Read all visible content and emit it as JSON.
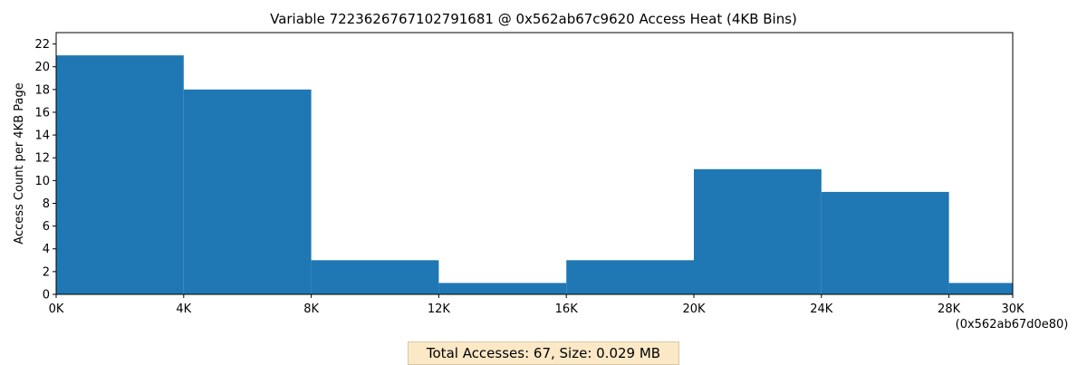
{
  "chart_data": {
    "type": "bar",
    "title": "Variable 7223626767102791681 @ 0x562ab67c9620 Access Heat (4KB Bins)",
    "xlabel": "",
    "ylabel": "Access Count per 4KB Page",
    "x_ticks": [
      "0K",
      "4K",
      "8K",
      "12K",
      "16K",
      "20K",
      "24K",
      "28K",
      "30K"
    ],
    "x_tick_values": [
      0,
      4,
      8,
      12,
      16,
      20,
      24,
      28,
      30
    ],
    "x_end_address": "(0x562ab67d0e80)",
    "bins": [
      {
        "start": 0,
        "end": 4,
        "value": 21
      },
      {
        "start": 4,
        "end": 8,
        "value": 18
      },
      {
        "start": 8,
        "end": 12,
        "value": 3
      },
      {
        "start": 12,
        "end": 16,
        "value": 1
      },
      {
        "start": 16,
        "end": 20,
        "value": 3
      },
      {
        "start": 20,
        "end": 24,
        "value": 11
      },
      {
        "start": 24,
        "end": 28,
        "value": 9
      },
      {
        "start": 28,
        "end": 30,
        "value": 1
      }
    ],
    "xlim": [
      0,
      30
    ],
    "ylim": [
      0,
      23
    ],
    "y_ticks": [
      0,
      2,
      4,
      6,
      8,
      10,
      12,
      14,
      16,
      18,
      20,
      22
    ],
    "bar_color": "#1f77b4",
    "grid": false,
    "legend": "none"
  },
  "summary": {
    "text": "Total Accesses: 67, Size: 0.029 MB"
  }
}
